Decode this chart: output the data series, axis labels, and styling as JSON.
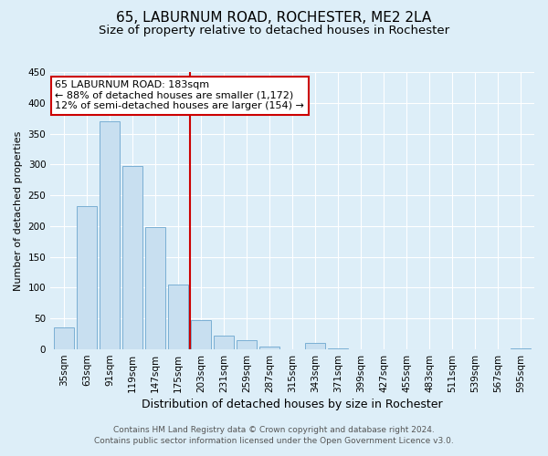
{
  "title": "65, LABURNUM ROAD, ROCHESTER, ME2 2LA",
  "subtitle": "Size of property relative to detached houses in Rochester",
  "xlabel": "Distribution of detached houses by size in Rochester",
  "ylabel": "Number of detached properties",
  "bar_color": "#c8dff0",
  "bar_edge_color": "#7aafd4",
  "background_color": "#ddeef8",
  "plot_bg_color": "#ddeef8",
  "categories": [
    "35sqm",
    "63sqm",
    "91sqm",
    "119sqm",
    "147sqm",
    "175sqm",
    "203sqm",
    "231sqm",
    "259sqm",
    "287sqm",
    "315sqm",
    "343sqm",
    "371sqm",
    "399sqm",
    "427sqm",
    "455sqm",
    "483sqm",
    "511sqm",
    "539sqm",
    "567sqm",
    "595sqm"
  ],
  "values": [
    35,
    233,
    370,
    298,
    199,
    105,
    47,
    22,
    15,
    5,
    0,
    10,
    1,
    0,
    0,
    0,
    0,
    0,
    0,
    0,
    1
  ],
  "ylim": [
    0,
    450
  ],
  "yticks": [
    0,
    50,
    100,
    150,
    200,
    250,
    300,
    350,
    400,
    450
  ],
  "vline_x": 5.5,
  "vline_color": "#cc0000",
  "annotation_title": "65 LABURNUM ROAD: 183sqm",
  "annotation_line1": "← 88% of detached houses are smaller (1,172)",
  "annotation_line2": "12% of semi-detached houses are larger (154) →",
  "annotation_box_color": "#ffffff",
  "annotation_box_edge": "#cc0000",
  "footer1": "Contains HM Land Registry data © Crown copyright and database right 2024.",
  "footer2": "Contains public sector information licensed under the Open Government Licence v3.0.",
  "title_fontsize": 11,
  "subtitle_fontsize": 9.5,
  "xlabel_fontsize": 9,
  "ylabel_fontsize": 8,
  "tick_fontsize": 7.5,
  "annotation_fontsize": 8,
  "footer_fontsize": 6.5
}
